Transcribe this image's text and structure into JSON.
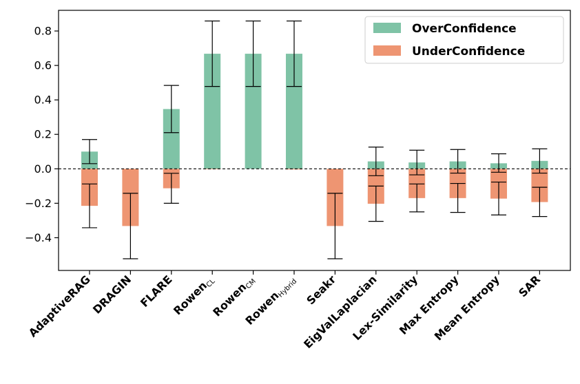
{
  "chart_data": {
    "type": "bar",
    "categories": [
      {
        "label": "AdaptiveRAG"
      },
      {
        "label": "DRAGIN"
      },
      {
        "label": "FLARE"
      },
      {
        "label": "Rowen",
        "sub": "CL"
      },
      {
        "label": "Rowen",
        "sub": "CM"
      },
      {
        "label": "Rowen",
        "sub": "Hybrid"
      },
      {
        "label": "Seakr"
      },
      {
        "label": "EigValLaplacian"
      },
      {
        "label": "Lex-Similarity"
      },
      {
        "label": "Max Entropy"
      },
      {
        "label": "Mean Entropy"
      },
      {
        "label": "SAR"
      }
    ],
    "series": [
      {
        "name": "OverConfidence",
        "color": "#7fc3a6",
        "values": [
          0.1,
          0.0,
          0.347,
          0.668,
          0.668,
          0.668,
          0.0,
          0.043,
          0.037,
          0.043,
          0.032,
          0.046
        ],
        "error_low": [
          0.03,
          null,
          0.21,
          0.478,
          0.478,
          0.478,
          null,
          -0.04,
          -0.035,
          -0.025,
          -0.02,
          -0.025
        ],
        "error_high": [
          0.17,
          null,
          0.484,
          0.858,
          0.858,
          0.858,
          null,
          0.126,
          0.108,
          0.112,
          0.087,
          0.116
        ]
      },
      {
        "name": "UnderConfidence",
        "color": "#ee9572",
        "values": [
          -0.215,
          -0.332,
          -0.113,
          -0.003,
          0.0,
          -0.004,
          -0.332,
          -0.203,
          -0.17,
          -0.17,
          -0.173,
          -0.193
        ],
        "error_low": [
          -0.342,
          -0.522,
          -0.2,
          null,
          null,
          null,
          -0.522,
          -0.305,
          -0.25,
          -0.253,
          -0.268,
          -0.277
        ],
        "error_high": [
          -0.088,
          -0.142,
          -0.026,
          null,
          null,
          null,
          -0.142,
          -0.1,
          -0.088,
          -0.085,
          -0.077,
          -0.107
        ]
      }
    ],
    "ylim": [
      -0.59,
      0.92
    ],
    "yticks": [
      -0.4,
      -0.2,
      0.0,
      0.2,
      0.4,
      0.6,
      0.8
    ],
    "ytick_labels": [
      "−0.4",
      "−0.2",
      "0.0",
      "0.2",
      "0.4",
      "0.6",
      "0.8"
    ],
    "reference_line": {
      "y": 0.0,
      "style": "dashed"
    },
    "legend": {
      "placement": "top-right"
    },
    "grid": false,
    "title": "",
    "xlabel": "",
    "ylabel": ""
  }
}
